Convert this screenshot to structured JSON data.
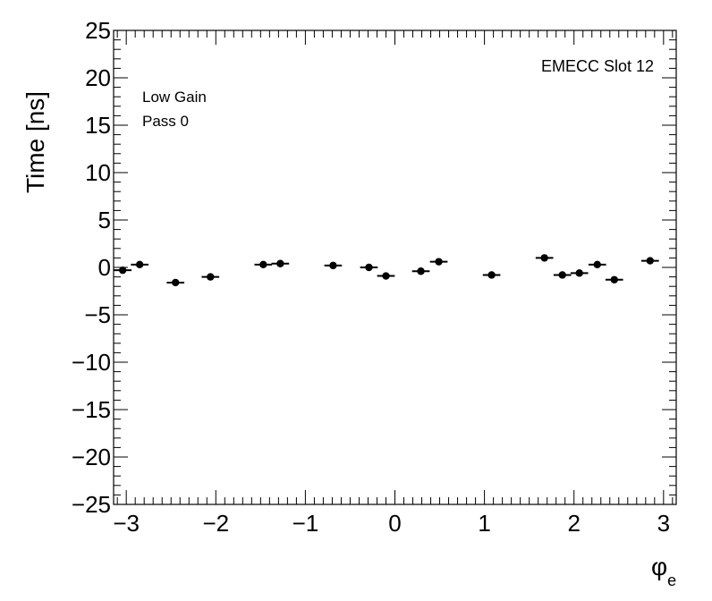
{
  "chart_data": {
    "type": "scatter",
    "title": "",
    "xlabel": "φ",
    "xlabel_sub": "e",
    "ylabel": "Time [ns]",
    "xlim": [
      -3.1416,
      3.1416
    ],
    "ylim": [
      -25,
      25
    ],
    "x_ticks": [
      -3,
      -2,
      -1,
      0,
      1,
      2,
      3
    ],
    "x_tick_labels": [
      "−3",
      "−2",
      "−1",
      "0",
      "1",
      "2",
      "3"
    ],
    "y_ticks": [
      -25,
      -20,
      -15,
      -10,
      -5,
      0,
      5,
      10,
      15,
      20,
      25
    ],
    "y_tick_labels": [
      "−25",
      "−20",
      "−15",
      "−10",
      "−5",
      "0",
      "5",
      "10",
      "15",
      "20",
      "25"
    ],
    "x_bin_halfwidth": 0.0982,
    "annotations": {
      "top_right": "EMECC Slot 12",
      "top_left": [
        "Low Gain",
        "Pass 0"
      ]
    },
    "series": [
      {
        "marker_color": "#000000",
        "points": [
          {
            "x": -3.04,
            "y": -0.3
          },
          {
            "x": -2.85,
            "y": 0.3
          },
          {
            "x": -2.45,
            "y": -1.6
          },
          {
            "x": -2.06,
            "y": -1.0
          },
          {
            "x": -1.47,
            "y": 0.3
          },
          {
            "x": -1.28,
            "y": 0.4
          },
          {
            "x": -0.69,
            "y": 0.2
          },
          {
            "x": -0.29,
            "y": 0.0
          },
          {
            "x": -0.1,
            "y": -0.9
          },
          {
            "x": 0.29,
            "y": -0.4
          },
          {
            "x": 0.49,
            "y": 0.6
          },
          {
            "x": 1.08,
            "y": -0.8
          },
          {
            "x": 1.67,
            "y": 1.0
          },
          {
            "x": 1.87,
            "y": -0.8
          },
          {
            "x": 2.06,
            "y": -0.6
          },
          {
            "x": 2.26,
            "y": 0.3
          },
          {
            "x": 2.45,
            "y": -1.3
          },
          {
            "x": 2.85,
            "y": 0.7
          }
        ]
      }
    ]
  }
}
